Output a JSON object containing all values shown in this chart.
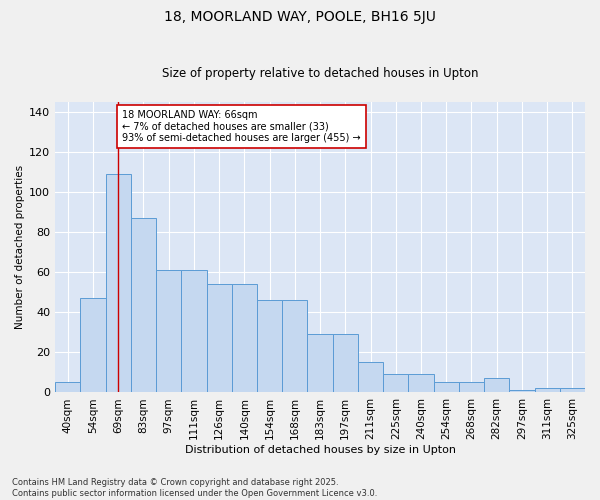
{
  "title1": "18, MOORLAND WAY, POOLE, BH16 5JU",
  "title2": "Size of property relative to detached houses in Upton",
  "xlabel": "Distribution of detached houses by size in Upton",
  "ylabel": "Number of detached properties",
  "categories": [
    "40sqm",
    "54sqm",
    "69sqm",
    "83sqm",
    "97sqm",
    "111sqm",
    "126sqm",
    "140sqm",
    "154sqm",
    "168sqm",
    "183sqm",
    "197sqm",
    "211sqm",
    "225sqm",
    "240sqm",
    "254sqm",
    "268sqm",
    "282sqm",
    "297sqm",
    "311sqm",
    "325sqm"
  ],
  "values": [
    5,
    47,
    109,
    87,
    61,
    61,
    54,
    54,
    46,
    46,
    29,
    29,
    15,
    9,
    9,
    5,
    5,
    7,
    1,
    2,
    2
  ],
  "bar_color": "#c5d8f0",
  "bar_edge_color": "#5b9bd5",
  "bg_color": "#dce6f5",
  "grid_color": "#ffffff",
  "vline_x_idx": 2,
  "vline_color": "#cc0000",
  "annotation_text": "18 MOORLAND WAY: 66sqm\n← 7% of detached houses are smaller (33)\n93% of semi-detached houses are larger (455) →",
  "annotation_box_color": "#ffffff",
  "annotation_box_edge_color": "#cc0000",
  "ylim": [
    0,
    145
  ],
  "yticks": [
    0,
    20,
    40,
    60,
    80,
    100,
    120,
    140
  ],
  "footer1": "Contains HM Land Registry data © Crown copyright and database right 2025.",
  "footer2": "Contains public sector information licensed under the Open Government Licence v3.0.",
  "title1_fontsize": 10,
  "title2_fontsize": 8.5,
  "axis_label_fontsize": 7.5,
  "tick_fontsize": 7.5,
  "annotation_fontsize": 7,
  "footer_fontsize": 6
}
